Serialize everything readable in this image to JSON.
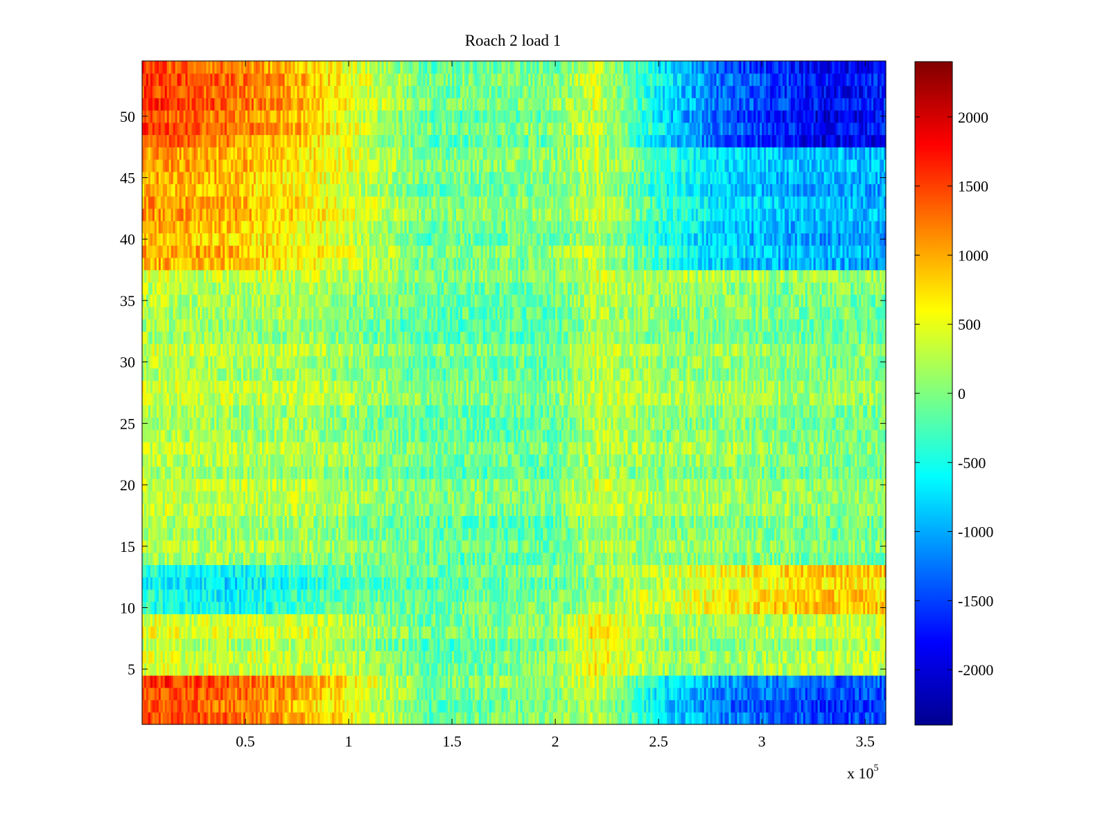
{
  "chart_data": {
    "type": "heatmap",
    "title": "Roach 2 load 1",
    "xlabel": "",
    "ylabel": "",
    "x_multiplier_label": "x 10",
    "x_multiplier_exponent": "5",
    "xlim": [
      0,
      3.6
    ],
    "ylim": [
      0.5,
      54.5
    ],
    "x_ticks": [
      0.5,
      1,
      1.5,
      2,
      2.5,
      3,
      3.5
    ],
    "x_tick_labels": [
      "0.5",
      "1",
      "1.5",
      "2",
      "2.5",
      "3",
      "3.5"
    ],
    "y_ticks": [
      5,
      10,
      15,
      20,
      25,
      30,
      35,
      40,
      45,
      50
    ],
    "y_tick_labels": [
      "5",
      "10",
      "15",
      "20",
      "25",
      "30",
      "35",
      "40",
      "45",
      "50"
    ],
    "rows": 54,
    "colormap": "jet",
    "clim": [
      -2400,
      2400
    ],
    "colorbar_ticks": [
      2000,
      1500,
      1000,
      500,
      0,
      -500,
      -1000,
      -1500,
      -2000
    ],
    "colorbar_tick_labels": [
      "2000",
      "1500",
      "1000",
      "500",
      "0",
      "-500",
      "-1000",
      "-1500",
      "-2000"
    ],
    "value_pattern": {
      "description_x_breakpoints": [
        0,
        0.4,
        0.8,
        1.0,
        1.4,
        2.0,
        2.2,
        2.5,
        2.8,
        3.3,
        3.6
      ],
      "top_band_rows": [
        48,
        54
      ],
      "top_band_values": [
        1600,
        1300,
        900,
        500,
        -100,
        0,
        400,
        -600,
        -1300,
        -1800,
        -1700
      ],
      "mid_upper_rows": [
        38,
        47
      ],
      "mid_upper_values": [
        1000,
        900,
        600,
        400,
        -100,
        0,
        300,
        -400,
        -800,
        -1000,
        -1000
      ],
      "middle_rows": [
        14,
        37
      ],
      "middle_values": [
        300,
        200,
        200,
        100,
        -100,
        -100,
        300,
        100,
        100,
        0,
        0
      ],
      "low_mid_rows": [
        10,
        13
      ],
      "low_mid_values": [
        -500,
        -700,
        -400,
        -200,
        -200,
        -100,
        100,
        300,
        500,
        800,
        700
      ],
      "low_rows": [
        5,
        9
      ],
      "low_values": [
        400,
        300,
        300,
        200,
        -200,
        0,
        600,
        100,
        100,
        200,
        300
      ],
      "bottom_band_rows": [
        1,
        4
      ],
      "bottom_band_values": [
        1500,
        1300,
        900,
        600,
        -200,
        0,
        300,
        -700,
        -1200,
        -1500,
        -1500
      ]
    }
  },
  "colors": {
    "axis": "#000000",
    "background": "#ffffff"
  }
}
